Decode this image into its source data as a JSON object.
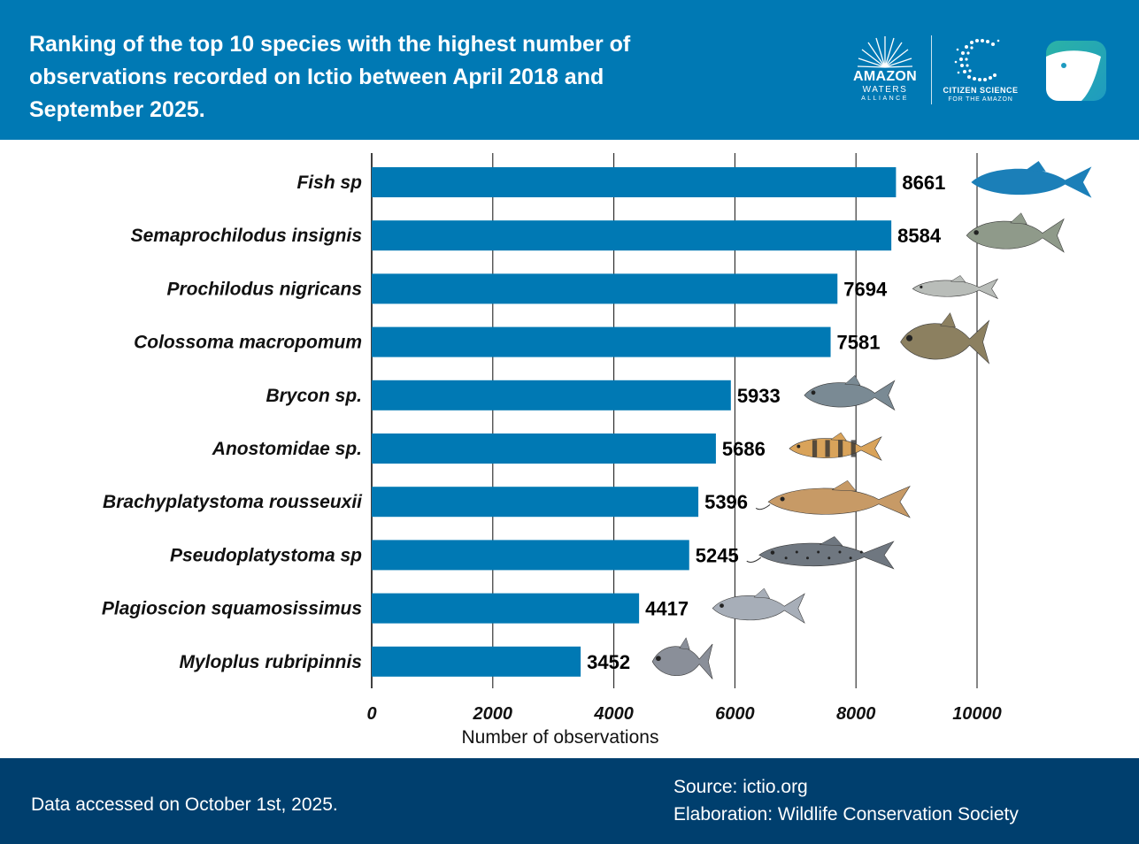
{
  "header": {
    "title": "Ranking of the top 10 species with the highest number of observations recorded on Ictio between April 2018 and September 2025.",
    "logo_amazon": {
      "name": "AMAZON",
      "sub1": "WATERS",
      "sub2": "ALLIANCE"
    },
    "logo_citizen": {
      "line1": "CITIZEN SCIENCE",
      "line2": "FOR THE AMAZON"
    },
    "app_icon": "ictio-fish-app-icon"
  },
  "footer": {
    "accessed": "Data accessed on October 1st, 2025.",
    "source": "Source: ictio.org",
    "elaboration": "Elaboration: Wildlife Conservation Society"
  },
  "colors": {
    "header_bg": "#0079b4",
    "bar": "#0079b4",
    "footer_bg": "#003f6e",
    "grid": "#222222"
  },
  "chart_data": {
    "type": "bar",
    "orientation": "horizontal",
    "title": "Ranking of the top 10 species with the highest number of observations recorded on Ictio between April 2018 and September 2025.",
    "xlabel": "Number of observations",
    "ylabel": "",
    "xlim": [
      0,
      10000
    ],
    "xticks": [
      0,
      2000,
      4000,
      6000,
      8000,
      10000
    ],
    "grid": true,
    "categories": [
      "Fish sp",
      "Semaprochilodus insignis",
      "Prochilodus nigricans",
      "Colossoma macropomum",
      "Brycon sp.",
      "Anostomidae sp.",
      "Brachyplatystoma rousseuxii",
      "Pseudoplatystoma sp",
      "Plagioscion squamosissimus",
      "Myloplus rubripinnis"
    ],
    "values": [
      8661,
      8584,
      7694,
      7581,
      5933,
      5686,
      5396,
      5245,
      4417,
      3452
    ],
    "fish_icons": [
      "generic-fish-silhouette-icon",
      "semaprochilodus-fish-icon",
      "prochilodus-fish-icon",
      "colossoma-fish-icon",
      "brycon-fish-icon",
      "anostomidae-fish-icon",
      "brachyplatystoma-catfish-icon",
      "pseudoplatystoma-catfish-icon",
      "plagioscion-fish-icon",
      "myloplus-fish-icon"
    ]
  }
}
